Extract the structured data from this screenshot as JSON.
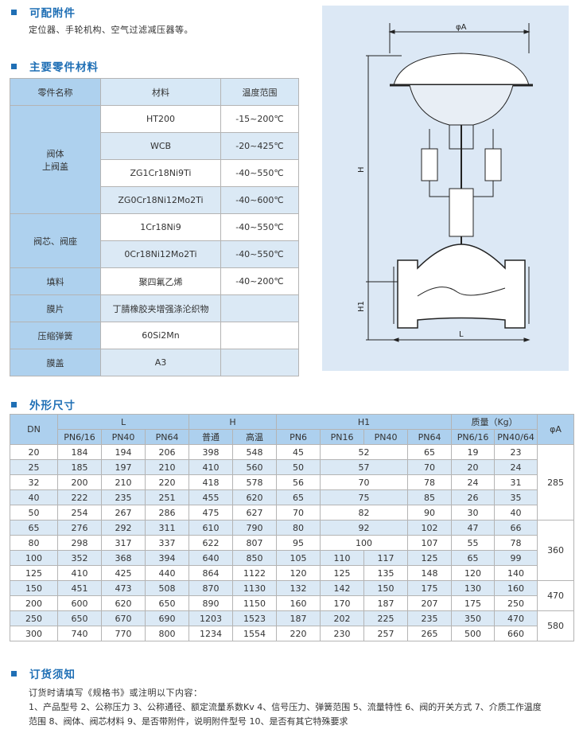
{
  "accessories": {
    "title": "可配附件",
    "text": "定位器、手轮机构、空气过滤减压器等。"
  },
  "materials": {
    "title": "主要零件材料",
    "headers": [
      "零件名称",
      "材料",
      "温度范围"
    ],
    "groups": [
      {
        "part": "阀体\n上阀盖",
        "rows": [
          [
            "HT200",
            "-15~200℃"
          ],
          [
            "WCB",
            "-20~425℃"
          ],
          [
            "ZG1Cr18Ni9Ti",
            "-40~550℃"
          ],
          [
            "ZG0Cr18Ni12Mo2Ti",
            "-40~600℃"
          ]
        ]
      },
      {
        "part": "阀芯、阀座",
        "rows": [
          [
            "1Cr18Ni9",
            "-40~550℃"
          ],
          [
            "0Cr18Ni12Mo2Ti",
            "-40~550℃"
          ]
        ]
      },
      {
        "part": "填料",
        "rows": [
          [
            "聚四氟乙烯",
            "-40~200℃"
          ]
        ]
      },
      {
        "part": "膜片",
        "rows": [
          [
            "丁腈橡胶夹增强涤沦织物",
            ""
          ]
        ]
      },
      {
        "part": "压缩弹簧",
        "rows": [
          [
            "60Si2Mn",
            ""
          ]
        ]
      },
      {
        "part": "膜盖",
        "rows": [
          [
            "A3",
            ""
          ]
        ]
      }
    ]
  },
  "diagram": {
    "phiA": "φA",
    "H": "H",
    "H1": "H1",
    "L": "L",
    "bg": "#dce8f5"
  },
  "dimensions": {
    "title": "外形尺寸",
    "header1": [
      "DN",
      "L",
      "H",
      "H1",
      "质量（Kg）",
      "φA"
    ],
    "header2": [
      "PN6/16",
      "PN40",
      "PN64",
      "普通",
      "高温",
      "PN6",
      "PN16",
      "PN40",
      "PN64",
      "PN6/16",
      "PN40/64"
    ],
    "rows": [
      {
        "dn": 20,
        "L": [
          184,
          194,
          206
        ],
        "H": [
          398,
          548
        ],
        "H1": [
          45,
          [
            52,
            2
          ],
          65
        ],
        "m": [
          19,
          23
        ],
        "phiA": [
          285,
          5
        ]
      },
      {
        "dn": 25,
        "L": [
          185,
          197,
          210
        ],
        "H": [
          410,
          560
        ],
        "H1": [
          50,
          [
            57,
            2
          ],
          70
        ],
        "m": [
          20,
          24
        ]
      },
      {
        "dn": 32,
        "L": [
          200,
          210,
          220
        ],
        "H": [
          418,
          578
        ],
        "H1": [
          56,
          [
            70,
            2
          ],
          78
        ],
        "m": [
          24,
          31
        ]
      },
      {
        "dn": 40,
        "L": [
          222,
          235,
          251
        ],
        "H": [
          455,
          620
        ],
        "H1": [
          65,
          [
            75,
            2
          ],
          85
        ],
        "m": [
          26,
          35
        ]
      },
      {
        "dn": 50,
        "L": [
          254,
          267,
          286
        ],
        "H": [
          475,
          627
        ],
        "H1": [
          70,
          [
            82,
            2
          ],
          90
        ],
        "m": [
          30,
          40
        ]
      },
      {
        "dn": 65,
        "L": [
          276,
          292,
          311
        ],
        "H": [
          610,
          790
        ],
        "H1": [
          80,
          [
            92,
            2
          ],
          102
        ],
        "m": [
          47,
          66
        ],
        "phiA": [
          360,
          4
        ]
      },
      {
        "dn": 80,
        "L": [
          298,
          317,
          337
        ],
        "H": [
          622,
          807
        ],
        "H1": [
          95,
          [
            100,
            2
          ],
          107
        ],
        "m": [
          55,
          78
        ]
      },
      {
        "dn": 100,
        "L": [
          352,
          368,
          394
        ],
        "H": [
          640,
          850
        ],
        "H1": [
          105,
          110,
          117,
          125
        ],
        "m": [
          65,
          99
        ]
      },
      {
        "dn": 125,
        "L": [
          410,
          425,
          440
        ],
        "H": [
          864,
          1122
        ],
        "H1": [
          120,
          125,
          135,
          148
        ],
        "m": [
          120,
          140
        ]
      },
      {
        "dn": 150,
        "L": [
          451,
          473,
          508
        ],
        "H": [
          870,
          1130
        ],
        "H1": [
          132,
          142,
          150,
          175
        ],
        "m": [
          130,
          160
        ],
        "phiA": [
          470,
          2
        ]
      },
      {
        "dn": 200,
        "L": [
          600,
          620,
          650
        ],
        "H": [
          890,
          1150
        ],
        "H1": [
          160,
          170,
          187,
          207
        ],
        "m": [
          175,
          250
        ]
      },
      {
        "dn": 250,
        "L": [
          650,
          670,
          690
        ],
        "H": [
          1203,
          1523
        ],
        "H1": [
          187,
          202,
          225,
          235
        ],
        "m": [
          350,
          470
        ],
        "phiA": [
          580,
          2
        ]
      },
      {
        "dn": 300,
        "L": [
          740,
          770,
          800
        ],
        "H": [
          1234,
          1554
        ],
        "H1": [
          220,
          230,
          257,
          265
        ],
        "m": [
          500,
          660
        ]
      }
    ]
  },
  "ordering": {
    "title": "订货须知",
    "line1": "订货时请填写《规格书》或注明以下内容：",
    "line2": "1、产品型号  2、公称压力  3、公称通径、额定流量系数Kv  4、信号压力、弹簧范围 5、流量特性  6、阀的开关方式  7、介质工作温度",
    "line3": "范围  8、阀体、阀芯材料 9、是否带附件，说明附件型号  10、是否有其它特殊要求"
  },
  "colors": {
    "accent": "#1f6fb5",
    "header": "#add0ee",
    "alt_row": "#dbe9f5"
  }
}
